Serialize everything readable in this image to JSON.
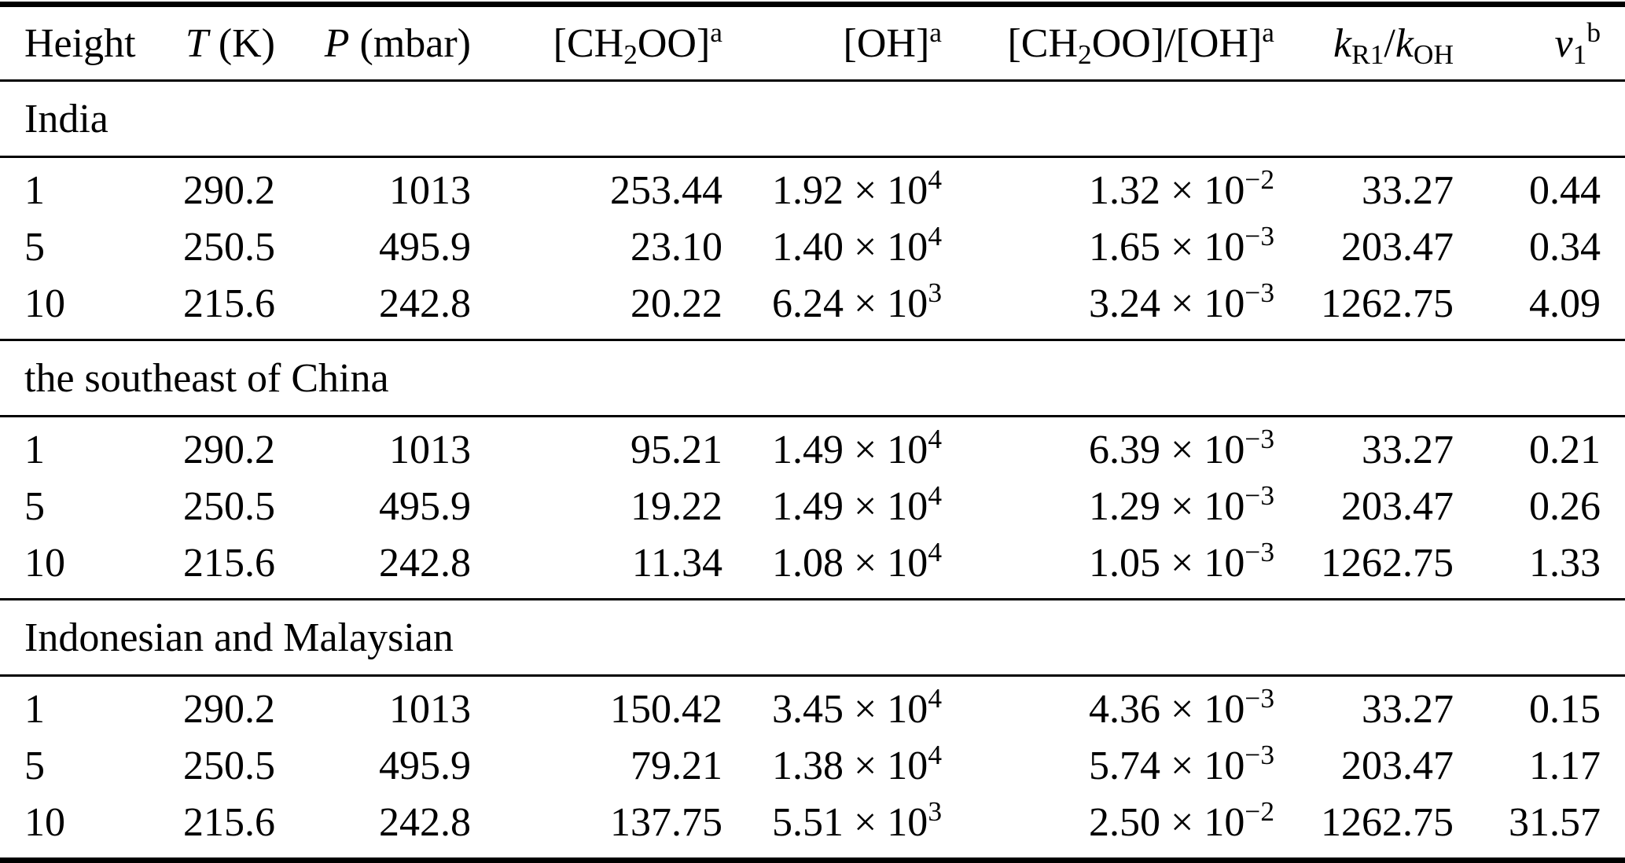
{
  "table": {
    "columns": [
      {
        "id": "height",
        "align": "left",
        "header": [
          {
            "t": "Height"
          }
        ]
      },
      {
        "id": "temperature",
        "align": "right",
        "header": [
          {
            "t": "T",
            "s": "i"
          },
          {
            "t": " (K)"
          }
        ]
      },
      {
        "id": "pressure",
        "align": "right",
        "header": [
          {
            "t": "P",
            "s": "i"
          },
          {
            "t": " (mbar)"
          }
        ]
      },
      {
        "id": "ch2oo",
        "align": "right",
        "header": [
          {
            "t": "[CH"
          },
          {
            "t": "2",
            "s": "sub"
          },
          {
            "t": "OO]"
          },
          {
            "t": "a",
            "s": "sup"
          }
        ]
      },
      {
        "id": "oh",
        "align": "right",
        "header": [
          {
            "t": "[OH]"
          },
          {
            "t": "a",
            "s": "sup"
          }
        ]
      },
      {
        "id": "ch2oo-oh-ratio",
        "align": "right",
        "header": [
          {
            "t": "[CH"
          },
          {
            "t": "2",
            "s": "sub"
          },
          {
            "t": "OO]/[OH]"
          },
          {
            "t": "a",
            "s": "sup"
          }
        ]
      },
      {
        "id": "k-ratio",
        "align": "right",
        "header": [
          {
            "t": "k",
            "s": "i"
          },
          {
            "t": "R1",
            "s": "sub"
          },
          {
            "t": "/"
          },
          {
            "t": "k",
            "s": "i"
          },
          {
            "t": "OH",
            "s": "sub"
          }
        ]
      },
      {
        "id": "v1",
        "align": "right",
        "header": [
          {
            "t": "v",
            "s": "i"
          },
          {
            "t": "1",
            "s": "sub"
          },
          {
            "t": "b",
            "s": "sup"
          }
        ]
      }
    ],
    "sections": [
      {
        "title": "India",
        "rows": [
          [
            [
              {
                "t": "1"
              }
            ],
            [
              {
                "t": "290.2"
              }
            ],
            [
              {
                "t": "1013"
              }
            ],
            [
              {
                "t": "253.44"
              }
            ],
            [
              {
                "t": "1.92 × 10"
              },
              {
                "t": "4",
                "s": "sup"
              }
            ],
            [
              {
                "t": "1.32 × 10"
              },
              {
                "t": "−2",
                "s": "sup"
              }
            ],
            [
              {
                "t": "33.27"
              }
            ],
            [
              {
                "t": "0.44"
              }
            ]
          ],
          [
            [
              {
                "t": "5"
              }
            ],
            [
              {
                "t": "250.5"
              }
            ],
            [
              {
                "t": "495.9"
              }
            ],
            [
              {
                "t": "23.10"
              }
            ],
            [
              {
                "t": "1.40 × 10"
              },
              {
                "t": "4",
                "s": "sup"
              }
            ],
            [
              {
                "t": "1.65 × 10"
              },
              {
                "t": "−3",
                "s": "sup"
              }
            ],
            [
              {
                "t": "203.47"
              }
            ],
            [
              {
                "t": "0.34"
              }
            ]
          ],
          [
            [
              {
                "t": "10"
              }
            ],
            [
              {
                "t": "215.6"
              }
            ],
            [
              {
                "t": "242.8"
              }
            ],
            [
              {
                "t": "20.22"
              }
            ],
            [
              {
                "t": "6.24 × 10"
              },
              {
                "t": "3",
                "s": "sup"
              }
            ],
            [
              {
                "t": "3.24 × 10"
              },
              {
                "t": "−3",
                "s": "sup"
              }
            ],
            [
              {
                "t": "1262.75"
              }
            ],
            [
              {
                "t": "4.09"
              }
            ]
          ]
        ]
      },
      {
        "title": "the southeast of China",
        "rows": [
          [
            [
              {
                "t": "1"
              }
            ],
            [
              {
                "t": "290.2"
              }
            ],
            [
              {
                "t": "1013"
              }
            ],
            [
              {
                "t": "95.21"
              }
            ],
            [
              {
                "t": "1.49 × 10"
              },
              {
                "t": "4",
                "s": "sup"
              }
            ],
            [
              {
                "t": "6.39 × 10"
              },
              {
                "t": "−3",
                "s": "sup"
              }
            ],
            [
              {
                "t": "33.27"
              }
            ],
            [
              {
                "t": "0.21"
              }
            ]
          ],
          [
            [
              {
                "t": "5"
              }
            ],
            [
              {
                "t": "250.5"
              }
            ],
            [
              {
                "t": "495.9"
              }
            ],
            [
              {
                "t": "19.22"
              }
            ],
            [
              {
                "t": "1.49 × 10"
              },
              {
                "t": "4",
                "s": "sup"
              }
            ],
            [
              {
                "t": "1.29 × 10"
              },
              {
                "t": "−3",
                "s": "sup"
              }
            ],
            [
              {
                "t": "203.47"
              }
            ],
            [
              {
                "t": "0.26"
              }
            ]
          ],
          [
            [
              {
                "t": "10"
              }
            ],
            [
              {
                "t": "215.6"
              }
            ],
            [
              {
                "t": "242.8"
              }
            ],
            [
              {
                "t": "11.34"
              }
            ],
            [
              {
                "t": "1.08 × 10"
              },
              {
                "t": "4",
                "s": "sup"
              }
            ],
            [
              {
                "t": "1.05 × 10"
              },
              {
                "t": "−3",
                "s": "sup"
              }
            ],
            [
              {
                "t": "1262.75"
              }
            ],
            [
              {
                "t": "1.33"
              }
            ]
          ]
        ]
      },
      {
        "title": "Indonesian and Malaysian",
        "rows": [
          [
            [
              {
                "t": "1"
              }
            ],
            [
              {
                "t": "290.2"
              }
            ],
            [
              {
                "t": "1013"
              }
            ],
            [
              {
                "t": "150.42"
              }
            ],
            [
              {
                "t": "3.45 × 10"
              },
              {
                "t": "4",
                "s": "sup"
              }
            ],
            [
              {
                "t": "4.36 × 10"
              },
              {
                "t": "−3",
                "s": "sup"
              }
            ],
            [
              {
                "t": "33.27"
              }
            ],
            [
              {
                "t": "0.15"
              }
            ]
          ],
          [
            [
              {
                "t": "5"
              }
            ],
            [
              {
                "t": "250.5"
              }
            ],
            [
              {
                "t": "495.9"
              }
            ],
            [
              {
                "t": "79.21"
              }
            ],
            [
              {
                "t": "1.38 × 10"
              },
              {
                "t": "4",
                "s": "sup"
              }
            ],
            [
              {
                "t": "5.74 × 10"
              },
              {
                "t": "−3",
                "s": "sup"
              }
            ],
            [
              {
                "t": "203.47"
              }
            ],
            [
              {
                "t": "1.17"
              }
            ]
          ],
          [
            [
              {
                "t": "10"
              }
            ],
            [
              {
                "t": "215.6"
              }
            ],
            [
              {
                "t": "242.8"
              }
            ],
            [
              {
                "t": "137.75"
              }
            ],
            [
              {
                "t": "5.51 × 10"
              },
              {
                "t": "3",
                "s": "sup"
              }
            ],
            [
              {
                "t": "2.50 × 10"
              },
              {
                "t": "−2",
                "s": "sup"
              }
            ],
            [
              {
                "t": "1262.75"
              }
            ],
            [
              {
                "t": "31.57"
              }
            ]
          ]
        ]
      }
    ]
  }
}
